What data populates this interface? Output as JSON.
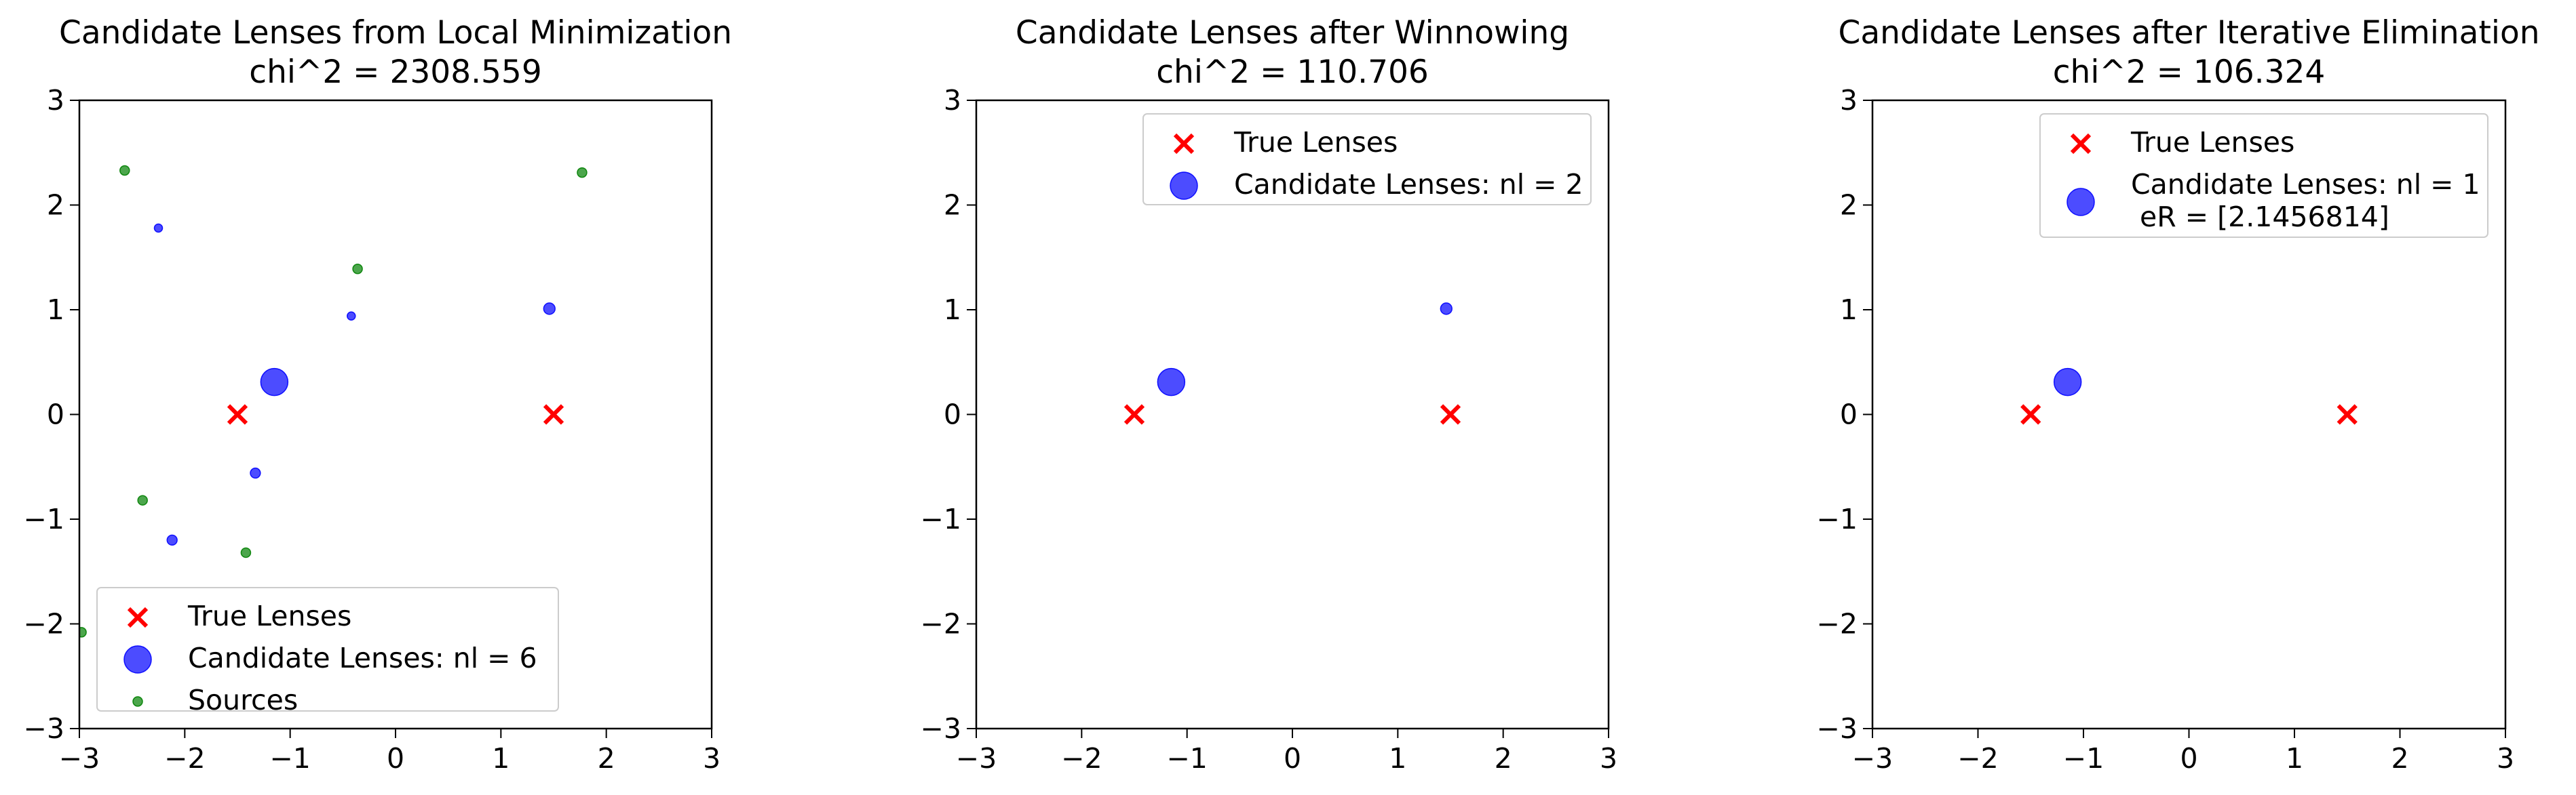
{
  "chart_data": [
    {
      "type": "scatter",
      "title": "Candidate Lenses from Local Minimization",
      "subtitle": "chi^2 = 2308.559",
      "xlim": [
        -3,
        3
      ],
      "ylim": [
        -3,
        3
      ],
      "xticks": [
        -3,
        -2,
        -1,
        0,
        1,
        2,
        3
      ],
      "yticks": [
        -3,
        -2,
        -1,
        0,
        1,
        2,
        3
      ],
      "tick_labels": [
        "−3",
        "−2",
        "−1",
        "0",
        "1",
        "2",
        "3"
      ],
      "grid": false,
      "legend_position": "lower-left",
      "series": [
        {
          "name": "True Lenses",
          "marker": "x",
          "color": "#ff0000",
          "points": [
            [
              -1.5,
              0.0
            ],
            [
              1.5,
              0.0
            ]
          ]
        },
        {
          "name": "Candidate Lenses: nl = 6",
          "marker": "circle",
          "color": "#0000ff",
          "points": [
            [
              -1.15,
              0.31
            ],
            [
              1.46,
              1.01
            ],
            [
              -1.33,
              -0.56
            ],
            [
              -2.12,
              -1.2
            ],
            [
              -2.25,
              1.78
            ],
            [
              -0.42,
              0.94
            ]
          ],
          "relative_size": [
            1.0,
            0.42,
            0.37,
            0.37,
            0.2,
            0.2
          ]
        },
        {
          "name": "Sources",
          "marker": "circle",
          "color": "#008000",
          "points": [
            [
              -2.57,
              2.33
            ],
            [
              1.77,
              2.31
            ],
            [
              -0.36,
              1.39
            ],
            [
              -2.4,
              -0.82
            ],
            [
              -1.42,
              -1.32
            ],
            [
              -2.98,
              -2.08
            ]
          ]
        }
      ]
    },
    {
      "type": "scatter",
      "title": "Candidate Lenses after Winnowing",
      "subtitle": "chi^2 = 110.706",
      "xlim": [
        -3,
        3
      ],
      "ylim": [
        -3,
        3
      ],
      "xticks": [
        -3,
        -2,
        -1,
        0,
        1,
        2,
        3
      ],
      "yticks": [
        -3,
        -2,
        -1,
        0,
        1,
        2,
        3
      ],
      "tick_labels": [
        "−3",
        "−2",
        "−1",
        "0",
        "1",
        "2",
        "3"
      ],
      "grid": false,
      "legend_position": "upper-right",
      "series": [
        {
          "name": "True Lenses",
          "marker": "x",
          "color": "#ff0000",
          "points": [
            [
              -1.5,
              0.0
            ],
            [
              1.5,
              0.0
            ]
          ]
        },
        {
          "name": "Candidate Lenses: nl = 2",
          "marker": "circle",
          "color": "#0000ff",
          "points": [
            [
              -1.15,
              0.31
            ],
            [
              1.46,
              1.01
            ]
          ],
          "relative_size": [
            1.0,
            0.42
          ]
        }
      ]
    },
    {
      "type": "scatter",
      "title": "Candidate Lenses after Iterative Elimination",
      "subtitle": "chi^2 = 106.324",
      "xlim": [
        -3,
        3
      ],
      "ylim": [
        -3,
        3
      ],
      "xticks": [
        -3,
        -2,
        -1,
        0,
        1,
        2,
        3
      ],
      "yticks": [
        -3,
        -2,
        -1,
        0,
        1,
        2,
        3
      ],
      "tick_labels": [
        "−3",
        "−2",
        "−1",
        "0",
        "1",
        "2",
        "3"
      ],
      "grid": false,
      "legend_position": "upper-right",
      "series": [
        {
          "name": "True Lenses",
          "marker": "x",
          "color": "#ff0000",
          "points": [
            [
              -1.5,
              0.0
            ],
            [
              1.5,
              0.0
            ]
          ]
        },
        {
          "name": "Candidate Lenses: nl = 1\n eR = [2.1456814]",
          "marker": "circle",
          "color": "#0000ff",
          "points": [
            [
              -1.15,
              0.31
            ]
          ],
          "relative_size": [
            1.0
          ]
        }
      ]
    }
  ]
}
